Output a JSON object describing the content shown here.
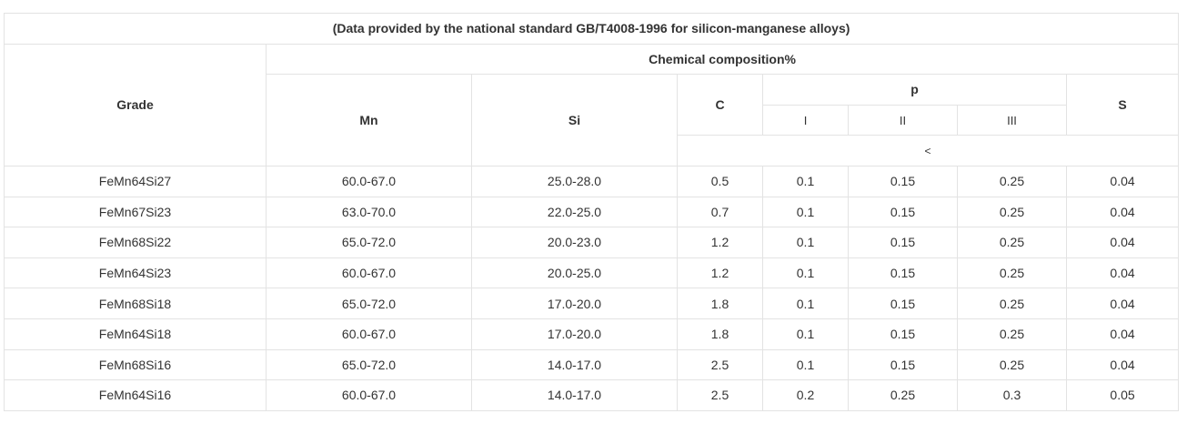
{
  "caption": "(Data provided by the national standard GB/T4008-1996 for silicon-manganese alloys)",
  "header": {
    "grade": "Grade",
    "chemical_composition": "Chemical composition%",
    "mn": "Mn",
    "si": "Si",
    "c": "C",
    "p": "p",
    "s": "S",
    "p_classes": [
      "I",
      "II",
      "III"
    ],
    "limit_symbol": "<"
  },
  "rows": [
    {
      "grade": "FeMn64Si27",
      "mn": "60.0-67.0",
      "si": "25.0-28.0",
      "c": "0.5",
      "p1": "0.1",
      "p2": "0.15",
      "p3": "0.25",
      "s": "0.04"
    },
    {
      "grade": "FeMn67Si23",
      "mn": "63.0-70.0",
      "si": "22.0-25.0",
      "c": "0.7",
      "p1": "0.1",
      "p2": "0.15",
      "p3": "0.25",
      "s": "0.04"
    },
    {
      "grade": "FeMn68Si22",
      "mn": "65.0-72.0",
      "si": "20.0-23.0",
      "c": "1.2",
      "p1": "0.1",
      "p2": "0.15",
      "p3": "0.25",
      "s": "0.04"
    },
    {
      "grade": "FeMn64Si23",
      "mn": "60.0-67.0",
      "si": "20.0-25.0",
      "c": "1.2",
      "p1": "0.1",
      "p2": "0.15",
      "p3": "0.25",
      "s": "0.04"
    },
    {
      "grade": "FeMn68Si18",
      "mn": "65.0-72.0",
      "si": "17.0-20.0",
      "c": "1.8",
      "p1": "0.1",
      "p2": "0.15",
      "p3": "0.25",
      "s": "0.04"
    },
    {
      "grade": "FeMn64Si18",
      "mn": "60.0-67.0",
      "si": "17.0-20.0",
      "c": "1.8",
      "p1": "0.1",
      "p2": "0.15",
      "p3": "0.25",
      "s": "0.04"
    },
    {
      "grade": "FeMn68Si16",
      "mn": "65.0-72.0",
      "si": "14.0-17.0",
      "c": "2.5",
      "p1": "0.1",
      "p2": "0.15",
      "p3": "0.25",
      "s": "0.04"
    },
    {
      "grade": "FeMn64Si16",
      "mn": "60.0-67.0",
      "si": "14.0-17.0",
      "c": "2.5",
      "p1": "0.2",
      "p2": "0.25",
      "p3": "0.3",
      "s": "0.05"
    }
  ]
}
